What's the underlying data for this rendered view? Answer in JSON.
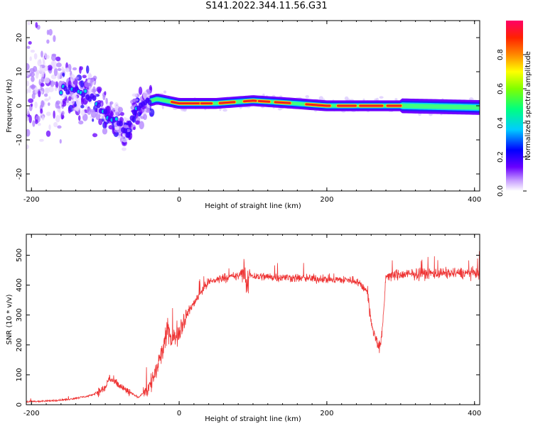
{
  "title": "S141.2022.344.11.56.G31",
  "chart_data": [
    {
      "type": "heatmap",
      "xlabel": "Height of straight line (km)",
      "ylabel": "Frequency (Hz)",
      "xlim": [
        -207,
        407
      ],
      "ylim": [
        -25,
        25
      ],
      "x_ticks": [
        "-200",
        "0",
        "200",
        "400"
      ],
      "y_ticks": [
        "-20",
        "-10",
        "0",
        "10",
        "20"
      ],
      "colorbar": {
        "label": "Normalized spectral amplitude",
        "range": [
          0,
          1
        ],
        "ticks": [
          "0.0",
          "0.2",
          "0.4",
          "0.6",
          "0.8"
        ]
      },
      "ridge": [
        {
          "x": -150,
          "y": 5
        },
        {
          "x": -120,
          "y": 3
        },
        {
          "x": -100,
          "y": -2
        },
        {
          "x": -80,
          "y": -6
        },
        {
          "x": -70,
          "y": -8
        },
        {
          "x": -60,
          "y": -1
        },
        {
          "x": -45,
          "y": 1
        },
        {
          "x": -30,
          "y": 2
        },
        {
          "x": 0,
          "y": 0.7
        },
        {
          "x": 50,
          "y": 0.7
        },
        {
          "x": 100,
          "y": 1.5
        },
        {
          "x": 150,
          "y": 0.8
        },
        {
          "x": 200,
          "y": 0
        },
        {
          "x": 300,
          "y": 0
        },
        {
          "x": 407,
          "y": -0.5
        }
      ]
    },
    {
      "type": "line",
      "xlabel": "Height of straight line (km)",
      "ylabel": "SNR (10 * v/v)",
      "xlim": [
        -207,
        407
      ],
      "ylim": [
        0,
        570
      ],
      "x_ticks": [
        "-200",
        "0",
        "200",
        "400"
      ],
      "y_ticks": [
        "0",
        "100",
        "200",
        "300",
        "400",
        "500"
      ],
      "series": [
        {
          "color": "#ee3333",
          "x": [
            -207,
            -180,
            -150,
            -120,
            -100,
            -95,
            -85,
            -70,
            -55,
            -40,
            -30,
            -20,
            -15,
            -10,
            -5,
            0,
            10,
            20,
            30,
            40,
            60,
            80,
            88,
            92,
            95,
            100,
            150,
            200,
            240,
            255,
            260,
            265,
            270,
            272,
            275,
            280,
            300,
            350,
            407
          ],
          "y": [
            10,
            12,
            18,
            30,
            55,
            90,
            70,
            45,
            25,
            60,
            120,
            200,
            260,
            210,
            230,
            250,
            300,
            340,
            380,
            410,
            425,
            430,
            450,
            380,
            440,
            430,
            425,
            420,
            415,
            380,
            270,
            230,
            200,
            190,
            240,
            430,
            435,
            440,
            440
          ]
        }
      ]
    }
  ]
}
